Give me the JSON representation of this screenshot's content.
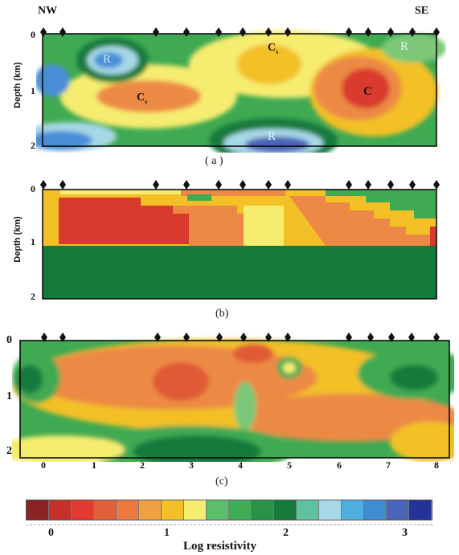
{
  "panel_a": {
    "left_label": "NW",
    "right_label": "SE",
    "y_axis_label": "Depth (km)",
    "y_ticks": [
      "0",
      "1",
      "2"
    ],
    "annotations": [
      "R",
      "C",
      "C",
      "R",
      "C",
      "R"
    ],
    "annotation_subscripts": [
      "s",
      "s"
    ],
    "caption": "( a )"
  },
  "panel_b": {
    "y_axis_label": "Depth (km)",
    "y_ticks": [
      "0",
      "1",
      "2"
    ],
    "caption": "(b)"
  },
  "panel_c": {
    "y_ticks": [
      "0",
      "1",
      "2"
    ],
    "x_ticks": [
      "0",
      "1",
      "2",
      "3",
      "4",
      "5",
      "6",
      "7",
      "8"
    ],
    "caption": "(c)"
  },
  "legend": {
    "title": "Log resistivity",
    "tick_labels": [
      "0",
      "1",
      "2",
      "3"
    ],
    "colors": [
      "#8c2323",
      "#c8302c",
      "#e03a32",
      "#e0603a",
      "#ec7a40",
      "#f0a040",
      "#f3c028",
      "#f6ec70",
      "#5bbf6a",
      "#40ad55",
      "#2a9246",
      "#157a3c",
      "#5ec1a0",
      "#a6d8e6",
      "#4fb0e0",
      "#3f8cd0",
      "#4a64b8",
      "#24339a"
    ]
  },
  "colors": {
    "dark_green": "#157a3c",
    "green": "#3faa52",
    "light_green": "#7cc878",
    "yellow": "#f6ec70",
    "orange_yellow": "#f3c028",
    "orange": "#ec8a45",
    "red_orange": "#e05a35",
    "red": "#d93a2e",
    "light_blue": "#a6d8e6",
    "blue": "#4a8fd8",
    "dark_blue": "#4a64b8"
  },
  "stations_icon": "diamond-icon"
}
